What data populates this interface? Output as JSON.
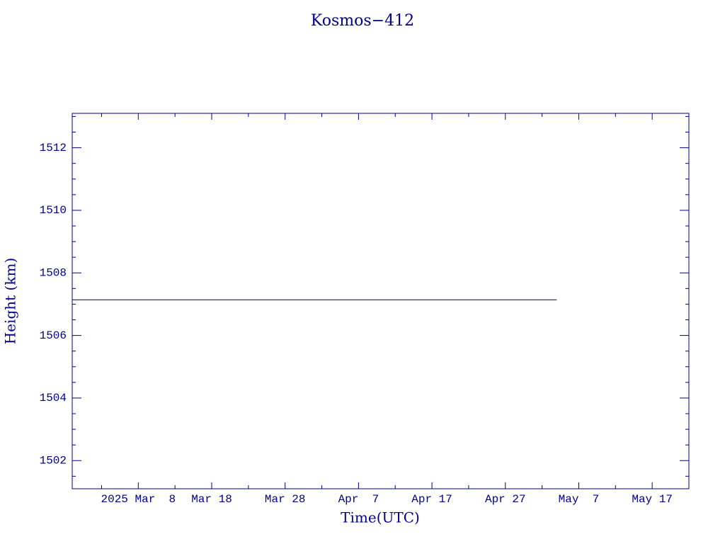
{
  "chart_data": {
    "type": "line",
    "title": "Kosmos−412",
    "x_label": "Time(UTC)",
    "y_label": "Height (km)",
    "x": [
      "2025-02-27",
      "2025-05-04"
    ],
    "series": [
      {
        "name": "Kosmos-412",
        "color": "#000050",
        "values": [
          1507.14,
          1507.14
        ]
      }
    ],
    "xlim": [
      "2025-02-27",
      "2025-05-22"
    ],
    "xticks": [
      {
        "value": "2025-03-08",
        "label": "2025 Mar  8"
      },
      {
        "value": "2025-03-18",
        "label": "Mar 18"
      },
      {
        "value": "2025-03-28",
        "label": "Mar 28"
      },
      {
        "value": "2025-04-07",
        "label": "Apr  7"
      },
      {
        "value": "2025-04-17",
        "label": "Apr 17"
      },
      {
        "value": "2025-04-27",
        "label": "Apr 27"
      },
      {
        "value": "2025-05-07",
        "label": "May  7"
      },
      {
        "value": "2025-05-17",
        "label": "May 17"
      }
    ],
    "xminor_ticks": [
      "2025-03-03",
      "2025-03-13",
      "2025-03-23",
      "2025-04-02",
      "2025-04-12",
      "2025-04-22",
      "2025-05-02",
      "2025-05-12"
    ],
    "ylim": [
      1501.1,
      1513.1
    ],
    "yticks": [
      1502,
      1504,
      1506,
      1508,
      1510,
      1512
    ],
    "yminor_ticks": [
      1501.5,
      1502.5,
      1503,
      1503.5,
      1504.5,
      1505,
      1505.5,
      1506.5,
      1507,
      1507.5,
      1508.5,
      1509,
      1509.5,
      1510.5,
      1511,
      1511.5,
      1512.5,
      1513
    ]
  }
}
